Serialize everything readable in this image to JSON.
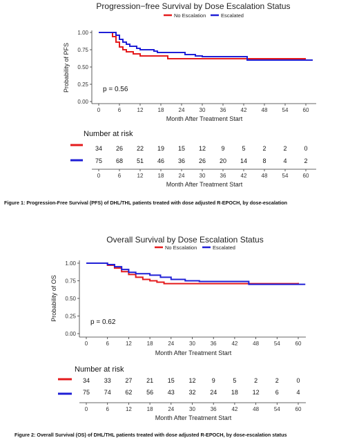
{
  "colors": {
    "no_escalation": "#e41a1c",
    "escalated": "#1f1fd6"
  },
  "chart_data": [
    {
      "type": "line",
      "title": "Progression−free Survival by Dose Escalation Status",
      "xlabel": "Month After Treatment Start",
      "ylabel": "Probability of PFS",
      "xlim": [
        -3,
        62
      ],
      "ylim": [
        0,
        1
      ],
      "x_ticks": [
        0,
        6,
        12,
        18,
        24,
        30,
        36,
        42,
        48,
        54,
        60
      ],
      "y_ticks": [
        "0.00",
        "0.25",
        "0.50",
        "0.75",
        "1.00"
      ],
      "legend": "top",
      "grid": false,
      "p_value": "p = 0.56",
      "series": [
        {
          "name": "No Escalation",
          "color": "#e41a1c",
          "points": [
            [
              0,
              1.0
            ],
            [
              3,
              1.0
            ],
            [
              4,
              0.94
            ],
            [
              5,
              0.86
            ],
            [
              6,
              0.79
            ],
            [
              7,
              0.75
            ],
            [
              8,
              0.72
            ],
            [
              10,
              0.69
            ],
            [
              12,
              0.66
            ],
            [
              18,
              0.66
            ],
            [
              20,
              0.62
            ],
            [
              42,
              0.62
            ],
            [
              43,
              0.62
            ],
            [
              60,
              0.62
            ]
          ]
        },
        {
          "name": "Escalated",
          "color": "#1f1fd6",
          "points": [
            [
              0,
              1.0
            ],
            [
              4,
              1.0
            ],
            [
              5,
              0.96
            ],
            [
              6,
              0.9
            ],
            [
              7,
              0.86
            ],
            [
              8,
              0.83
            ],
            [
              9,
              0.8
            ],
            [
              11,
              0.77
            ],
            [
              12,
              0.75
            ],
            [
              16,
              0.73
            ],
            [
              17,
              0.71
            ],
            [
              24,
              0.71
            ],
            [
              25,
              0.68
            ],
            [
              28,
              0.66
            ],
            [
              30,
              0.65
            ],
            [
              42,
              0.65
            ],
            [
              43,
              0.6
            ],
            [
              62,
              0.6
            ]
          ]
        }
      ],
      "risk_table": {
        "title": "Number at risk",
        "x": [
          0,
          6,
          12,
          18,
          24,
          30,
          36,
          42,
          48,
          54,
          60
        ],
        "rows": [
          {
            "name": "No Escalation",
            "color": "#e41a1c",
            "values": [
              "34",
              "26",
              "22",
              "19",
              "15",
              "12",
              "9",
              "5",
              "2",
              "2",
              "0"
            ]
          },
          {
            "name": "Escalated",
            "color": "#1f1fd6",
            "values": [
              "75",
              "68",
              "51",
              "46",
              "36",
              "26",
              "20",
              "14",
              "8",
              "4",
              "2"
            ]
          }
        ],
        "xlabel": "Month After Treatment Start"
      },
      "caption": "Figure 1: Progression-Free Survival (PFS) of DHL/THL patients treated with dose adjusted R-EPOCH, by dose-escalation"
    },
    {
      "type": "line",
      "title": "Overall Survival by Dose Escalation Status",
      "xlabel": "Month After Treatment Start",
      "ylabel": "Probability of OS",
      "xlim": [
        -3,
        62
      ],
      "ylim": [
        0,
        1
      ],
      "x_ticks": [
        0,
        6,
        12,
        18,
        24,
        30,
        36,
        42,
        48,
        54,
        60
      ],
      "y_ticks": [
        "0.00",
        "0.25",
        "0.50",
        "0.75",
        "1.00"
      ],
      "legend": "top",
      "grid": false,
      "p_value": "p = 0.62",
      "series": [
        {
          "name": "No Escalation",
          "color": "#e41a1c",
          "points": [
            [
              0,
              1.0
            ],
            [
              4,
              1.0
            ],
            [
              6,
              0.97
            ],
            [
              8,
              0.93
            ],
            [
              10,
              0.88
            ],
            [
              12,
              0.84
            ],
            [
              14,
              0.8
            ],
            [
              16,
              0.77
            ],
            [
              18,
              0.75
            ],
            [
              20,
              0.73
            ],
            [
              22,
              0.71
            ],
            [
              48,
              0.71
            ],
            [
              60,
              0.72
            ]
          ]
        },
        {
          "name": "Escalated",
          "color": "#1f1fd6",
          "points": [
            [
              0,
              1.0
            ],
            [
              4,
              1.0
            ],
            [
              6,
              0.98
            ],
            [
              8,
              0.95
            ],
            [
              10,
              0.91
            ],
            [
              12,
              0.87
            ],
            [
              14,
              0.85
            ],
            [
              18,
              0.83
            ],
            [
              21,
              0.8
            ],
            [
              24,
              0.77
            ],
            [
              28,
              0.75
            ],
            [
              32,
              0.74
            ],
            [
              42,
              0.74
            ],
            [
              46,
              0.7
            ],
            [
              62,
              0.7
            ]
          ]
        }
      ],
      "risk_table": {
        "title": "Number at risk",
        "x": [
          0,
          6,
          12,
          18,
          24,
          30,
          36,
          42,
          48,
          54,
          60
        ],
        "rows": [
          {
            "name": "No Escalation",
            "color": "#e41a1c",
            "values": [
              "34",
              "33",
              "27",
              "21",
              "15",
              "12",
              "9",
              "5",
              "2",
              "2",
              "0"
            ]
          },
          {
            "name": "Escalated",
            "color": "#1f1fd6",
            "values": [
              "75",
              "74",
              "62",
              "56",
              "43",
              "32",
              "24",
              "18",
              "12",
              "6",
              "4"
            ]
          }
        ],
        "xlabel": "Month After Treatment Start"
      },
      "caption": "Figure 2: Overall Survival (OS) of DHL/THL patients treated with dose adjusted R-EPOCH, by dose-escalation status"
    }
  ]
}
